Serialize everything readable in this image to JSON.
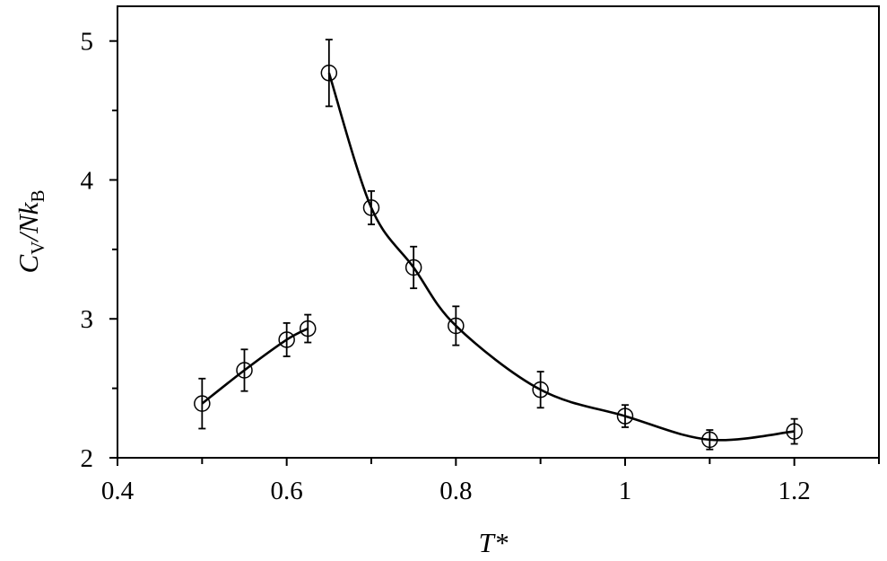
{
  "chart_data": {
    "type": "scatter",
    "title": "",
    "xlabel": "T*",
    "ylabel": {
      "c": "C",
      "v": "V",
      "slash": "/",
      "n": "N",
      "k": "k",
      "b": "B"
    },
    "xlim": [
      0.4,
      1.3
    ],
    "ylim": [
      2,
      5.25
    ],
    "x_ticks": [
      0.4,
      0.6,
      0.8,
      1,
      1.2
    ],
    "x_tick_labels": [
      "0.4",
      "0.6",
      "0.8",
      "1",
      "1.2"
    ],
    "x_minor_ticks": [
      0.5,
      0.7,
      0.9,
      1.1,
      1.3
    ],
    "y_ticks": [
      2,
      3,
      4,
      5
    ],
    "y_tick_labels": [
      "2",
      "3",
      "4",
      "5"
    ],
    "y_minor_ticks": [
      2.5,
      3.5,
      4.5
    ],
    "grid": false,
    "marker": "open-circle",
    "series": [
      {
        "x": [
          0.5,
          0.55,
          0.6,
          0.625
        ],
        "y": [
          2.39,
          2.63,
          2.85,
          2.93
        ],
        "yerr": [
          0.18,
          0.15,
          0.12,
          0.1
        ]
      },
      {
        "x": [
          0.65,
          0.7,
          0.75,
          0.8,
          0.9,
          1.0,
          1.1,
          1.2
        ],
        "y": [
          4.77,
          3.8,
          3.37,
          2.95,
          2.49,
          2.3,
          2.13,
          2.19
        ],
        "yerr": [
          0.24,
          0.12,
          0.15,
          0.14,
          0.13,
          0.08,
          0.07,
          0.09
        ]
      }
    ]
  }
}
